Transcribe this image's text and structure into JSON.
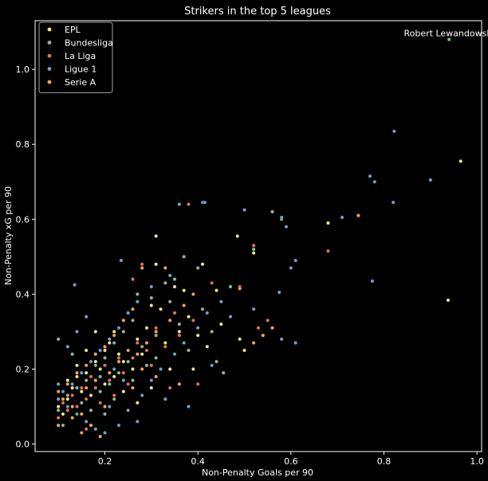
{
  "chart_data": {
    "type": "scatter",
    "title": "Strikers in the top 5 leagues",
    "xlabel": "Non-Penalty Goals per 90",
    "ylabel": "Non-Penalty xG per 90",
    "xlim": [
      0.05,
      1.01
    ],
    "ylim": [
      -0.02,
      1.13
    ],
    "xticks": [
      0.2,
      0.4,
      0.6,
      0.8,
      1.0
    ],
    "xtick_labels": [
      "0.2",
      "0.4",
      "0.6",
      "0.8",
      "1.0"
    ],
    "yticks": [
      0.0,
      0.2,
      0.4,
      0.6,
      0.8,
      1.0
    ],
    "ytick_labels": [
      "0.0",
      "0.2",
      "0.4",
      "0.6",
      "0.8",
      "1.0"
    ],
    "grid": false,
    "legend_position": "top-left",
    "background": "#000000",
    "annotations": [
      {
        "text": "Robert Lewandowski",
        "x": 0.94,
        "y": 1.08
      }
    ],
    "series": [
      {
        "name": "EPL",
        "color": "#f0e68c",
        "points": [
          [
            0.965,
            0.755
          ],
          [
            0.938,
            0.384
          ],
          [
            0.68,
            0.59
          ],
          [
            0.52,
            0.51
          ],
          [
            0.485,
            0.555
          ],
          [
            0.41,
            0.48
          ],
          [
            0.31,
            0.555
          ],
          [
            0.31,
            0.48
          ],
          [
            0.44,
            0.41
          ],
          [
            0.49,
            0.28
          ],
          [
            0.5,
            0.25
          ],
          [
            0.35,
            0.42
          ],
          [
            0.3,
            0.37
          ],
          [
            0.25,
            0.35
          ],
          [
            0.22,
            0.3
          ],
          [
            0.2,
            0.25
          ],
          [
            0.18,
            0.22
          ],
          [
            0.16,
            0.19
          ],
          [
            0.14,
            0.18
          ],
          [
            0.13,
            0.15
          ],
          [
            0.12,
            0.12
          ],
          [
            0.1,
            0.1
          ],
          [
            0.11,
            0.08
          ],
          [
            0.15,
            0.14
          ],
          [
            0.19,
            0.2
          ],
          [
            0.23,
            0.24
          ],
          [
            0.27,
            0.28
          ],
          [
            0.29,
            0.31
          ],
          [
            0.33,
            0.27
          ],
          [
            0.36,
            0.3
          ],
          [
            0.38,
            0.34
          ],
          [
            0.4,
            0.29
          ],
          [
            0.26,
            0.2
          ],
          [
            0.22,
            0.18
          ],
          [
            0.2,
            0.16
          ],
          [
            0.17,
            0.13
          ],
          [
            0.24,
            0.22
          ],
          [
            0.28,
            0.24
          ],
          [
            0.32,
            0.36
          ],
          [
            0.37,
            0.41
          ],
          [
            0.42,
            0.26
          ],
          [
            0.45,
            0.32
          ],
          [
            0.21,
            0.27
          ],
          [
            0.18,
            0.3
          ],
          [
            0.14,
            0.21
          ],
          [
            0.16,
            0.25
          ],
          [
            0.12,
            0.17
          ],
          [
            0.3,
            0.15
          ],
          [
            0.34,
            0.2
          ],
          [
            0.39,
            0.2
          ],
          [
            0.27,
            0.11
          ],
          [
            0.24,
            0.14
          ]
        ]
      },
      {
        "name": "Bundesliga",
        "color": "#8fbc8f",
        "points": [
          [
            0.94,
            1.08
          ],
          [
            0.52,
            0.52
          ],
          [
            0.4,
            0.47
          ],
          [
            0.35,
            0.44
          ],
          [
            0.58,
            0.6
          ],
          [
            0.56,
            0.62
          ],
          [
            0.455,
            0.19
          ],
          [
            0.37,
            0.5
          ],
          [
            0.33,
            0.43
          ],
          [
            0.3,
            0.39
          ],
          [
            0.26,
            0.33
          ],
          [
            0.24,
            0.3
          ],
          [
            0.22,
            0.27
          ],
          [
            0.2,
            0.23
          ],
          [
            0.18,
            0.21
          ],
          [
            0.16,
            0.17
          ],
          [
            0.14,
            0.15
          ],
          [
            0.12,
            0.13
          ],
          [
            0.1,
            0.09
          ],
          [
            0.11,
            0.05
          ],
          [
            0.15,
            0.11
          ],
          [
            0.17,
            0.09
          ],
          [
            0.19,
            0.14
          ],
          [
            0.21,
            0.16
          ],
          [
            0.23,
            0.19
          ],
          [
            0.25,
            0.22
          ],
          [
            0.28,
            0.26
          ],
          [
            0.31,
            0.29
          ],
          [
            0.36,
            0.32
          ],
          [
            0.41,
            0.36
          ],
          [
            0.44,
            0.22
          ],
          [
            0.38,
            0.25
          ],
          [
            0.29,
            0.21
          ],
          [
            0.26,
            0.17
          ],
          [
            0.22,
            0.12
          ],
          [
            0.2,
            0.08
          ],
          [
            0.1,
            0.28
          ],
          [
            0.13,
            0.24
          ],
          [
            0.27,
            0.4
          ],
          [
            0.34,
            0.38
          ],
          [
            0.43,
            0.3
          ],
          [
            0.47,
            0.42
          ],
          [
            0.31,
            0.23
          ],
          [
            0.19,
            0.18
          ]
        ]
      },
      {
        "name": "La Liga",
        "color": "#e2725b",
        "points": [
          [
            0.68,
            0.515
          ],
          [
            0.52,
            0.53
          ],
          [
            0.38,
            0.64
          ],
          [
            0.745,
            0.61
          ],
          [
            0.55,
            0.33
          ],
          [
            0.54,
            0.29
          ],
          [
            0.53,
            0.31
          ],
          [
            0.43,
            0.43
          ],
          [
            0.49,
            0.42
          ],
          [
            0.28,
            0.48
          ],
          [
            0.26,
            0.44
          ],
          [
            0.35,
            0.35
          ],
          [
            0.31,
            0.31
          ],
          [
            0.27,
            0.27
          ],
          [
            0.23,
            0.23
          ],
          [
            0.2,
            0.21
          ],
          [
            0.17,
            0.18
          ],
          [
            0.15,
            0.15
          ],
          [
            0.13,
            0.13
          ],
          [
            0.11,
            0.11
          ],
          [
            0.1,
            0.07
          ],
          [
            0.12,
            0.09
          ],
          [
            0.14,
            0.1
          ],
          [
            0.16,
            0.12
          ],
          [
            0.18,
            0.15
          ],
          [
            0.21,
            0.17
          ],
          [
            0.24,
            0.19
          ],
          [
            0.26,
            0.23
          ],
          [
            0.29,
            0.25
          ],
          [
            0.33,
            0.26
          ],
          [
            0.36,
            0.29
          ],
          [
            0.39,
            0.33
          ],
          [
            0.3,
            0.21
          ],
          [
            0.25,
            0.16
          ],
          [
            0.22,
            0.13
          ],
          [
            0.19,
            0.11
          ],
          [
            0.16,
            0.04
          ],
          [
            0.34,
            0.15
          ],
          [
            0.4,
            0.16
          ]
        ]
      },
      {
        "name": "Ligue 1",
        "color": "#6fa3c9",
        "points": [
          [
            0.822,
            0.835
          ],
          [
            0.77,
            0.715
          ],
          [
            0.78,
            0.7
          ],
          [
            0.9,
            0.705
          ],
          [
            0.82,
            0.645
          ],
          [
            0.775,
            0.435
          ],
          [
            0.71,
            0.605
          ],
          [
            0.61,
            0.49
          ],
          [
            0.6,
            0.47
          ],
          [
            0.59,
            0.58
          ],
          [
            0.58,
            0.605
          ],
          [
            0.5,
            0.625
          ],
          [
            0.41,
            0.645
          ],
          [
            0.36,
            0.64
          ],
          [
            0.415,
            0.645
          ],
          [
            0.575,
            0.405
          ],
          [
            0.52,
            0.36
          ],
          [
            0.61,
            0.27
          ],
          [
            0.58,
            0.28
          ],
          [
            0.135,
            0.425
          ],
          [
            0.235,
            0.49
          ],
          [
            0.34,
            0.45
          ],
          [
            0.3,
            0.42
          ],
          [
            0.27,
            0.38
          ],
          [
            0.25,
            0.35
          ],
          [
            0.23,
            0.31
          ],
          [
            0.21,
            0.28
          ],
          [
            0.19,
            0.25
          ],
          [
            0.17,
            0.22
          ],
          [
            0.15,
            0.19
          ],
          [
            0.13,
            0.16
          ],
          [
            0.11,
            0.14
          ],
          [
            0.1,
            0.12
          ],
          [
            0.12,
            0.1
          ],
          [
            0.14,
            0.08
          ],
          [
            0.16,
            0.06
          ],
          [
            0.18,
            0.04
          ],
          [
            0.2,
            0.03
          ],
          [
            0.23,
            0.05
          ],
          [
            0.25,
            0.09
          ],
          [
            0.28,
            0.13
          ],
          [
            0.3,
            0.17
          ],
          [
            0.32,
            0.2
          ],
          [
            0.35,
            0.24
          ],
          [
            0.37,
            0.27
          ],
          [
            0.4,
            0.31
          ],
          [
            0.42,
            0.35
          ],
          [
            0.45,
            0.38
          ],
          [
            0.47,
            0.34
          ],
          [
            0.43,
            0.21
          ],
          [
            0.38,
            0.1
          ],
          [
            0.33,
            0.12
          ],
          [
            0.27,
            0.06
          ],
          [
            0.21,
            0.1
          ],
          [
            0.1,
            0.16
          ],
          [
            0.12,
            0.26
          ],
          [
            0.14,
            0.3
          ],
          [
            0.16,
            0.34
          ],
          [
            0.22,
            0.2
          ],
          [
            0.24,
            0.17
          ]
        ]
      },
      {
        "name": "Serie A",
        "color": "#f4a460",
        "points": [
          [
            0.745,
            0.61
          ],
          [
            0.56,
            0.31
          ],
          [
            0.54,
            0.29
          ],
          [
            0.52,
            0.27
          ],
          [
            0.49,
            0.415
          ],
          [
            0.33,
            0.47
          ],
          [
            0.28,
            0.47
          ],
          [
            0.26,
            0.36
          ],
          [
            0.24,
            0.33
          ],
          [
            0.22,
            0.29
          ],
          [
            0.2,
            0.26
          ],
          [
            0.18,
            0.24
          ],
          [
            0.16,
            0.21
          ],
          [
            0.14,
            0.19
          ],
          [
            0.12,
            0.16
          ],
          [
            0.1,
            0.14
          ],
          [
            0.11,
            0.12
          ],
          [
            0.13,
            0.1
          ],
          [
            0.15,
            0.08
          ],
          [
            0.17,
            0.05
          ],
          [
            0.19,
            0.02
          ],
          [
            0.16,
            0.15
          ],
          [
            0.18,
            0.17
          ],
          [
            0.21,
            0.19
          ],
          [
            0.23,
            0.22
          ],
          [
            0.25,
            0.25
          ],
          [
            0.27,
            0.24
          ],
          [
            0.29,
            0.27
          ],
          [
            0.31,
            0.3
          ],
          [
            0.34,
            0.33
          ],
          [
            0.37,
            0.37
          ],
          [
            0.39,
            0.4
          ],
          [
            0.36,
            0.16
          ],
          [
            0.31,
            0.18
          ],
          [
            0.28,
            0.2
          ],
          [
            0.26,
            0.15
          ],
          [
            0.2,
            0.1
          ],
          [
            0.15,
            0.03
          ],
          [
            0.1,
            0.05
          ],
          [
            0.13,
            0.07
          ]
        ]
      }
    ]
  }
}
